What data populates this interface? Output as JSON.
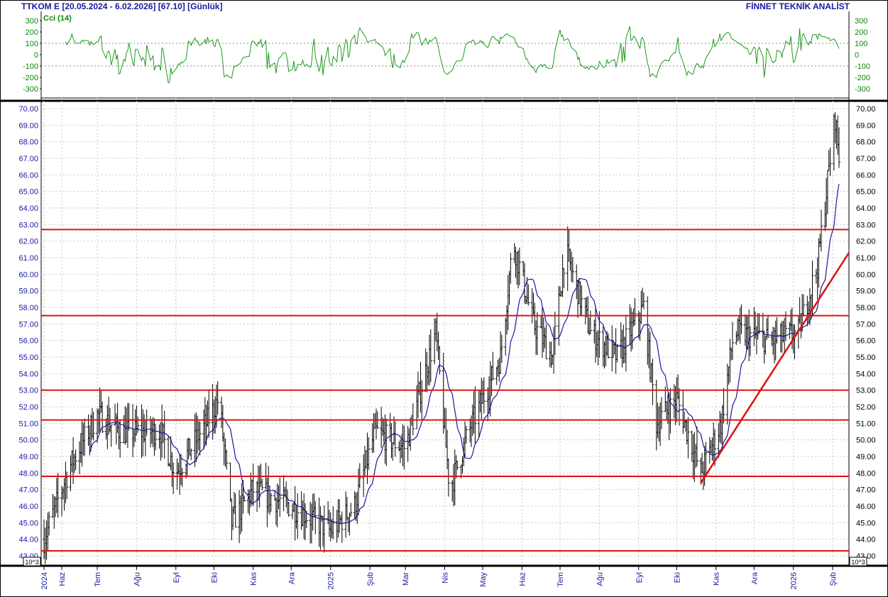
{
  "header": {
    "title": "TTKOM E  [20.05.2024 - 6.02.2026]  [67.10]  [Günlük]",
    "brand": "FİNNET TEKNİK ANALİST"
  },
  "indicator": {
    "label": "Cci (14)",
    "color": "#1f9a1f",
    "y_ticks": [
      "300",
      "200",
      "100",
      "0",
      "-100",
      "-200",
      "-300"
    ],
    "y_values": [
      300,
      200,
      100,
      0,
      -100,
      -200,
      -300
    ]
  },
  "price_axis": {
    "ticks": [
      "70.00",
      "69.00",
      "68.00",
      "67.00",
      "66.00",
      "65.00",
      "64.00",
      "63.00",
      "62.00",
      "61.00",
      "60.00",
      "59.00",
      "58.00",
      "57.00",
      "56.00",
      "55.00",
      "54.00",
      "53.00",
      "52.00",
      "51.00",
      "50.00",
      "49.00",
      "48.00",
      "47.00",
      "46.00",
      "45.00",
      "44.00",
      "43.00"
    ],
    "values": [
      70,
      69,
      68,
      67,
      66,
      65,
      64,
      63,
      62,
      61,
      60,
      59,
      58,
      57,
      56,
      55,
      54,
      53,
      52,
      51,
      50,
      49,
      48,
      47,
      46,
      45,
      44,
      43
    ],
    "scale_badge": "10^3"
  },
  "time_axis": {
    "labels": [
      "2024",
      "Haz",
      "Tem",
      "Ağu",
      "Eyl",
      "Eki",
      "Kas",
      "Ara",
      "2025",
      "Şub",
      "Mar",
      "Nis",
      "May",
      "Haz",
      "Tem",
      "Ağu",
      "Eyl",
      "Eki",
      "Kas",
      "Ara",
      "2026",
      "Şub"
    ]
  },
  "chart_data": {
    "type": "ohlc",
    "symbol": "TTKOM E",
    "range": "20.05.2024 - 6.02.2026",
    "last": 67.1,
    "ylim": [
      43,
      70
    ],
    "horizontal_levels": [
      62.7,
      57.5,
      53.0,
      51.2,
      47.8,
      43.3
    ],
    "trendline": {
      "from": [
        "2025-10-20",
        47.4
      ],
      "to": [
        "2026-02-06",
        61.3
      ]
    },
    "moving_average_approx": [
      [
        "2024-06",
        47.0
      ],
      [
        "2024-07",
        49.5
      ],
      [
        "2024-08",
        50.5
      ],
      [
        "2024-09",
        50.5
      ],
      [
        "2024-10",
        50.0
      ],
      [
        "2024-11",
        47.0
      ],
      [
        "2024-12",
        46.0
      ],
      [
        "2025-01",
        45.3
      ],
      [
        "2025-02",
        48.0
      ],
      [
        "2025-03",
        49.0
      ],
      [
        "2025-04",
        50.0
      ],
      [
        "2025-05",
        53.5
      ],
      [
        "2025-06",
        57.8
      ],
      [
        "2025-07",
        57.5
      ],
      [
        "2025-08",
        56.0
      ],
      [
        "2025-09",
        57.5
      ],
      [
        "2025-10",
        52.0
      ],
      [
        "2025-11",
        51.0
      ],
      [
        "2025-12",
        55.5
      ],
      [
        "2026-01",
        57.0
      ],
      [
        "2026-02",
        64.3
      ]
    ],
    "price_path_approx": [
      [
        "2024-05-20",
        44.0
      ],
      [
        "2024-06-10",
        48.5
      ],
      [
        "2024-07-01",
        51.5
      ],
      [
        "2024-07-20",
        50.5
      ],
      [
        "2024-08-20",
        50.5
      ],
      [
        "2024-09-01",
        48.0
      ],
      [
        "2024-09-25",
        51.0
      ],
      [
        "2024-10-05",
        52.5
      ],
      [
        "2024-10-15",
        45.0
      ],
      [
        "2024-11-01",
        47.0
      ],
      [
        "2024-12-01",
        46.0
      ],
      [
        "2025-01-01",
        44.5
      ],
      [
        "2025-01-20",
        46.0
      ],
      [
        "2025-02-05",
        50.5
      ],
      [
        "2025-03-01",
        49.5
      ],
      [
        "2025-03-25",
        56.5
      ],
      [
        "2025-04-05",
        47.0
      ],
      [
        "2025-04-20",
        50.5
      ],
      [
        "2025-05-15",
        55.0
      ],
      [
        "2025-05-25",
        62.0
      ],
      [
        "2025-06-10",
        57.0
      ],
      [
        "2025-06-25",
        55.0
      ],
      [
        "2025-07-05",
        61.5
      ],
      [
        "2025-07-25",
        56.5
      ],
      [
        "2025-08-15",
        55.0
      ],
      [
        "2025-09-05",
        58.0
      ],
      [
        "2025-09-15",
        51.0
      ],
      [
        "2025-10-01",
        52.5
      ],
      [
        "2025-10-20",
        48.0
      ],
      [
        "2025-11-05",
        51.0
      ],
      [
        "2025-11-15",
        56.5
      ],
      [
        "2025-12-15",
        56.0
      ],
      [
        "2026-01-05",
        56.5
      ],
      [
        "2026-01-20",
        60.5
      ],
      [
        "2026-02-03",
        69.5
      ],
      [
        "2026-02-06",
        67.1
      ]
    ]
  }
}
